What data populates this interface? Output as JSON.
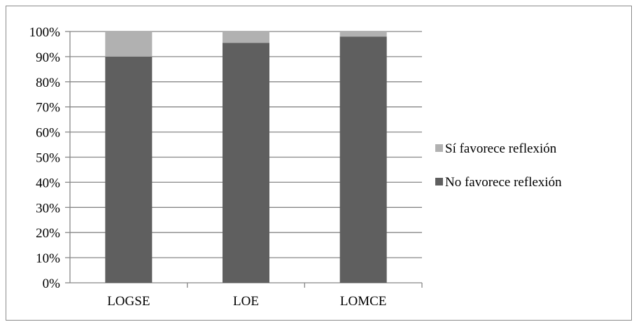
{
  "chart_data": {
    "type": "bar",
    "stacked": true,
    "percent_stacked": true,
    "categories": [
      "LOGSE",
      "LOE",
      "LOMCE"
    ],
    "series": [
      {
        "name": "No favorece reflexión",
        "values": [
          90,
          95.5,
          98
        ],
        "color": "#5f5f5f"
      },
      {
        "name": "Sí favorece reflexión",
        "values": [
          10,
          4.5,
          2
        ],
        "color": "#b1b1b1"
      }
    ],
    "y_ticks": [
      "0%",
      "10%",
      "20%",
      "30%",
      "40%",
      "50%",
      "60%",
      "70%",
      "80%",
      "90%",
      "100%"
    ],
    "ylim": [
      0,
      100
    ],
    "grid": true,
    "legend_position": "right",
    "legend_order": [
      "Sí favorece reflexión",
      "No favorece reflexión"
    ]
  }
}
